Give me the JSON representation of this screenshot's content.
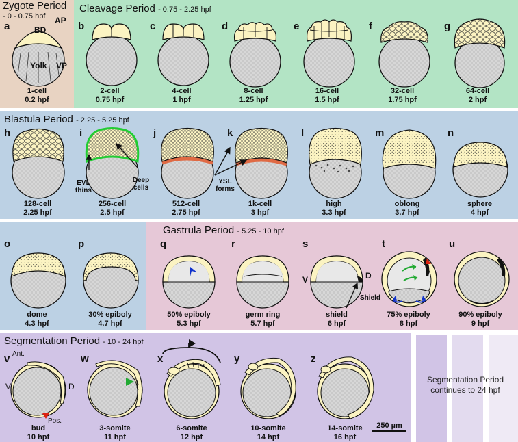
{
  "colors": {
    "zygote_bg": "#e8d3c2",
    "cleavage_bg": "#b3e4c5",
    "blastula_bg": "#bcd1e4",
    "gastrula_bg": "#e6c8d7",
    "segmentation_bg": "#d1c4e6",
    "yolk": "#cfcfcf",
    "blastoderm": "#fbf3c2",
    "evl_green": "#22cc33",
    "ysl_orange": "#e06a44",
    "arrow_red": "#dd2211",
    "arrow_green": "#22aa33",
    "arrow_blue": "#1133cc"
  },
  "periods": {
    "zygote": {
      "title": "Zygote Period",
      "range": "- 0 - 0.75 hpf"
    },
    "cleavage": {
      "title": "Cleavage Period",
      "range": "- 0.75 - 2.25 hpf"
    },
    "blastula": {
      "title": "Blastula Period",
      "range": "- 2.25 - 5.25 hpf"
    },
    "gastrula": {
      "title": "Gastrula Period",
      "range": "- 5.25 - 10 hpf"
    },
    "segmentation": {
      "title": "Segmentation Period",
      "range": "- 10 - 24 hpf"
    }
  },
  "stages": {
    "a": {
      "letter": "a",
      "name": "1-cell",
      "time": "0.2 hpf"
    },
    "b": {
      "letter": "b",
      "name": "2-cell",
      "time": "0.75 hpf"
    },
    "c": {
      "letter": "c",
      "name": "4-cell",
      "time": "1 hpf"
    },
    "d": {
      "letter": "d",
      "name": "8-cell",
      "time": "1.25 hpf"
    },
    "e": {
      "letter": "e",
      "name": "16-cell",
      "time": "1.5 hpf"
    },
    "f": {
      "letter": "f",
      "name": "32-cell",
      "time": "1.75 hpf"
    },
    "g": {
      "letter": "g",
      "name": "64-cell",
      "time": "2 hpf"
    },
    "h": {
      "letter": "h",
      "name": "128-cell",
      "time": "2.25 hpf"
    },
    "i": {
      "letter": "i",
      "name": "256-cell",
      "time": "2.5 hpf"
    },
    "j": {
      "letter": "j",
      "name": "512-cell",
      "time": "2.75 hpf"
    },
    "k": {
      "letter": "k",
      "name": "1k-cell",
      "time": "3 hpf"
    },
    "l": {
      "letter": "l",
      "name": "high",
      "time": "3.3 hpf"
    },
    "m": {
      "letter": "m",
      "name": "oblong",
      "time": "3.7 hpf"
    },
    "n": {
      "letter": "n",
      "name": "sphere",
      "time": "4 hpf"
    },
    "o": {
      "letter": "o",
      "name": "dome",
      "time": "4.3 hpf"
    },
    "p": {
      "letter": "p",
      "name": "30% epiboly",
      "time": "4.7 hpf"
    },
    "q": {
      "letter": "q",
      "name": "50% epiboly",
      "time": "5.3 hpf"
    },
    "r": {
      "letter": "r",
      "name": "germ ring",
      "time": "5.7 hpf"
    },
    "s": {
      "letter": "s",
      "name": "shield",
      "time": "6 hpf"
    },
    "t": {
      "letter": "t",
      "name": "75% epiboly",
      "time": "8 hpf"
    },
    "u": {
      "letter": "u",
      "name": "90% epiboly",
      "time": "9 hpf"
    },
    "v": {
      "letter": "v",
      "name": "bud",
      "time": "10 hpf"
    },
    "w": {
      "letter": "w",
      "name": "3-somite",
      "time": "11 hpf"
    },
    "x": {
      "letter": "x",
      "name": "6-somite",
      "time": "12 hpf"
    },
    "y": {
      "letter": "y",
      "name": "10-somite",
      "time": "14 hpf"
    },
    "z": {
      "letter": "z",
      "name": "14-somite",
      "time": "16 hpf"
    }
  },
  "annotations": {
    "bd": "BD",
    "ap": "AP",
    "vp": "VP",
    "yolk": "Yolk",
    "evl_thins": "EVL thins",
    "deep_cells": "Deep cells",
    "ysl_forms": "YSL forms",
    "v_label": "V",
    "d_label": "D",
    "shield_label": "Shield",
    "ant": "Ant.",
    "pos": "Pos."
  },
  "scale_bar": "250 µm",
  "continuation_note": "Segmentation Period continues to 24 hpf"
}
